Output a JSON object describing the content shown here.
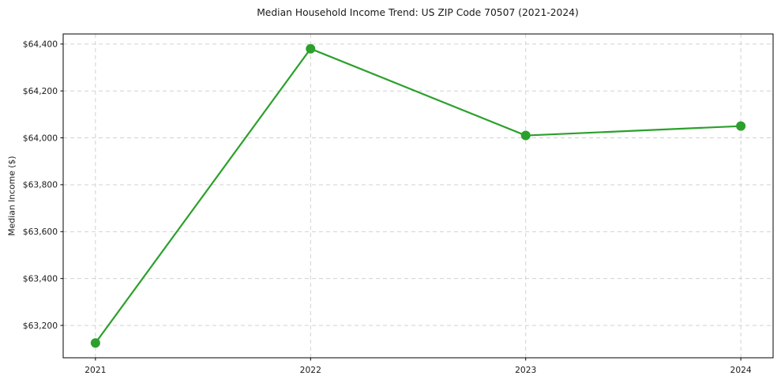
{
  "chart_data": {
    "type": "line",
    "title": "Median Household Income Trend: US ZIP Code 70507 (2021-2024)",
    "xlabel": "",
    "ylabel": "Median Income ($)",
    "x": [
      2021,
      2022,
      2023,
      2024
    ],
    "values": [
      63125,
      64380,
      64010,
      64050
    ],
    "x_tick_labels": [
      "2021",
      "2022",
      "2023",
      "2024"
    ],
    "y_ticks": [
      63200,
      63400,
      63600,
      63800,
      64000,
      64200,
      64400
    ],
    "y_tick_labels": [
      "$63,200",
      "$63,400",
      "$63,600",
      "$63,800",
      "$64,000",
      "$64,200",
      "$64,400"
    ],
    "xlim": [
      2020.85,
      2024.15
    ],
    "ylim": [
      63062,
      64443
    ],
    "grid": true,
    "grid_linestyle": "dashed",
    "legend_position": "none",
    "line_color": "#2ca02c",
    "marker": "circle",
    "marker_color": "#2ca02c",
    "grid_color": "#cccccc",
    "frame_color": "#000000",
    "text_color": "#1a1a1a",
    "background_color": "#ffffff"
  }
}
